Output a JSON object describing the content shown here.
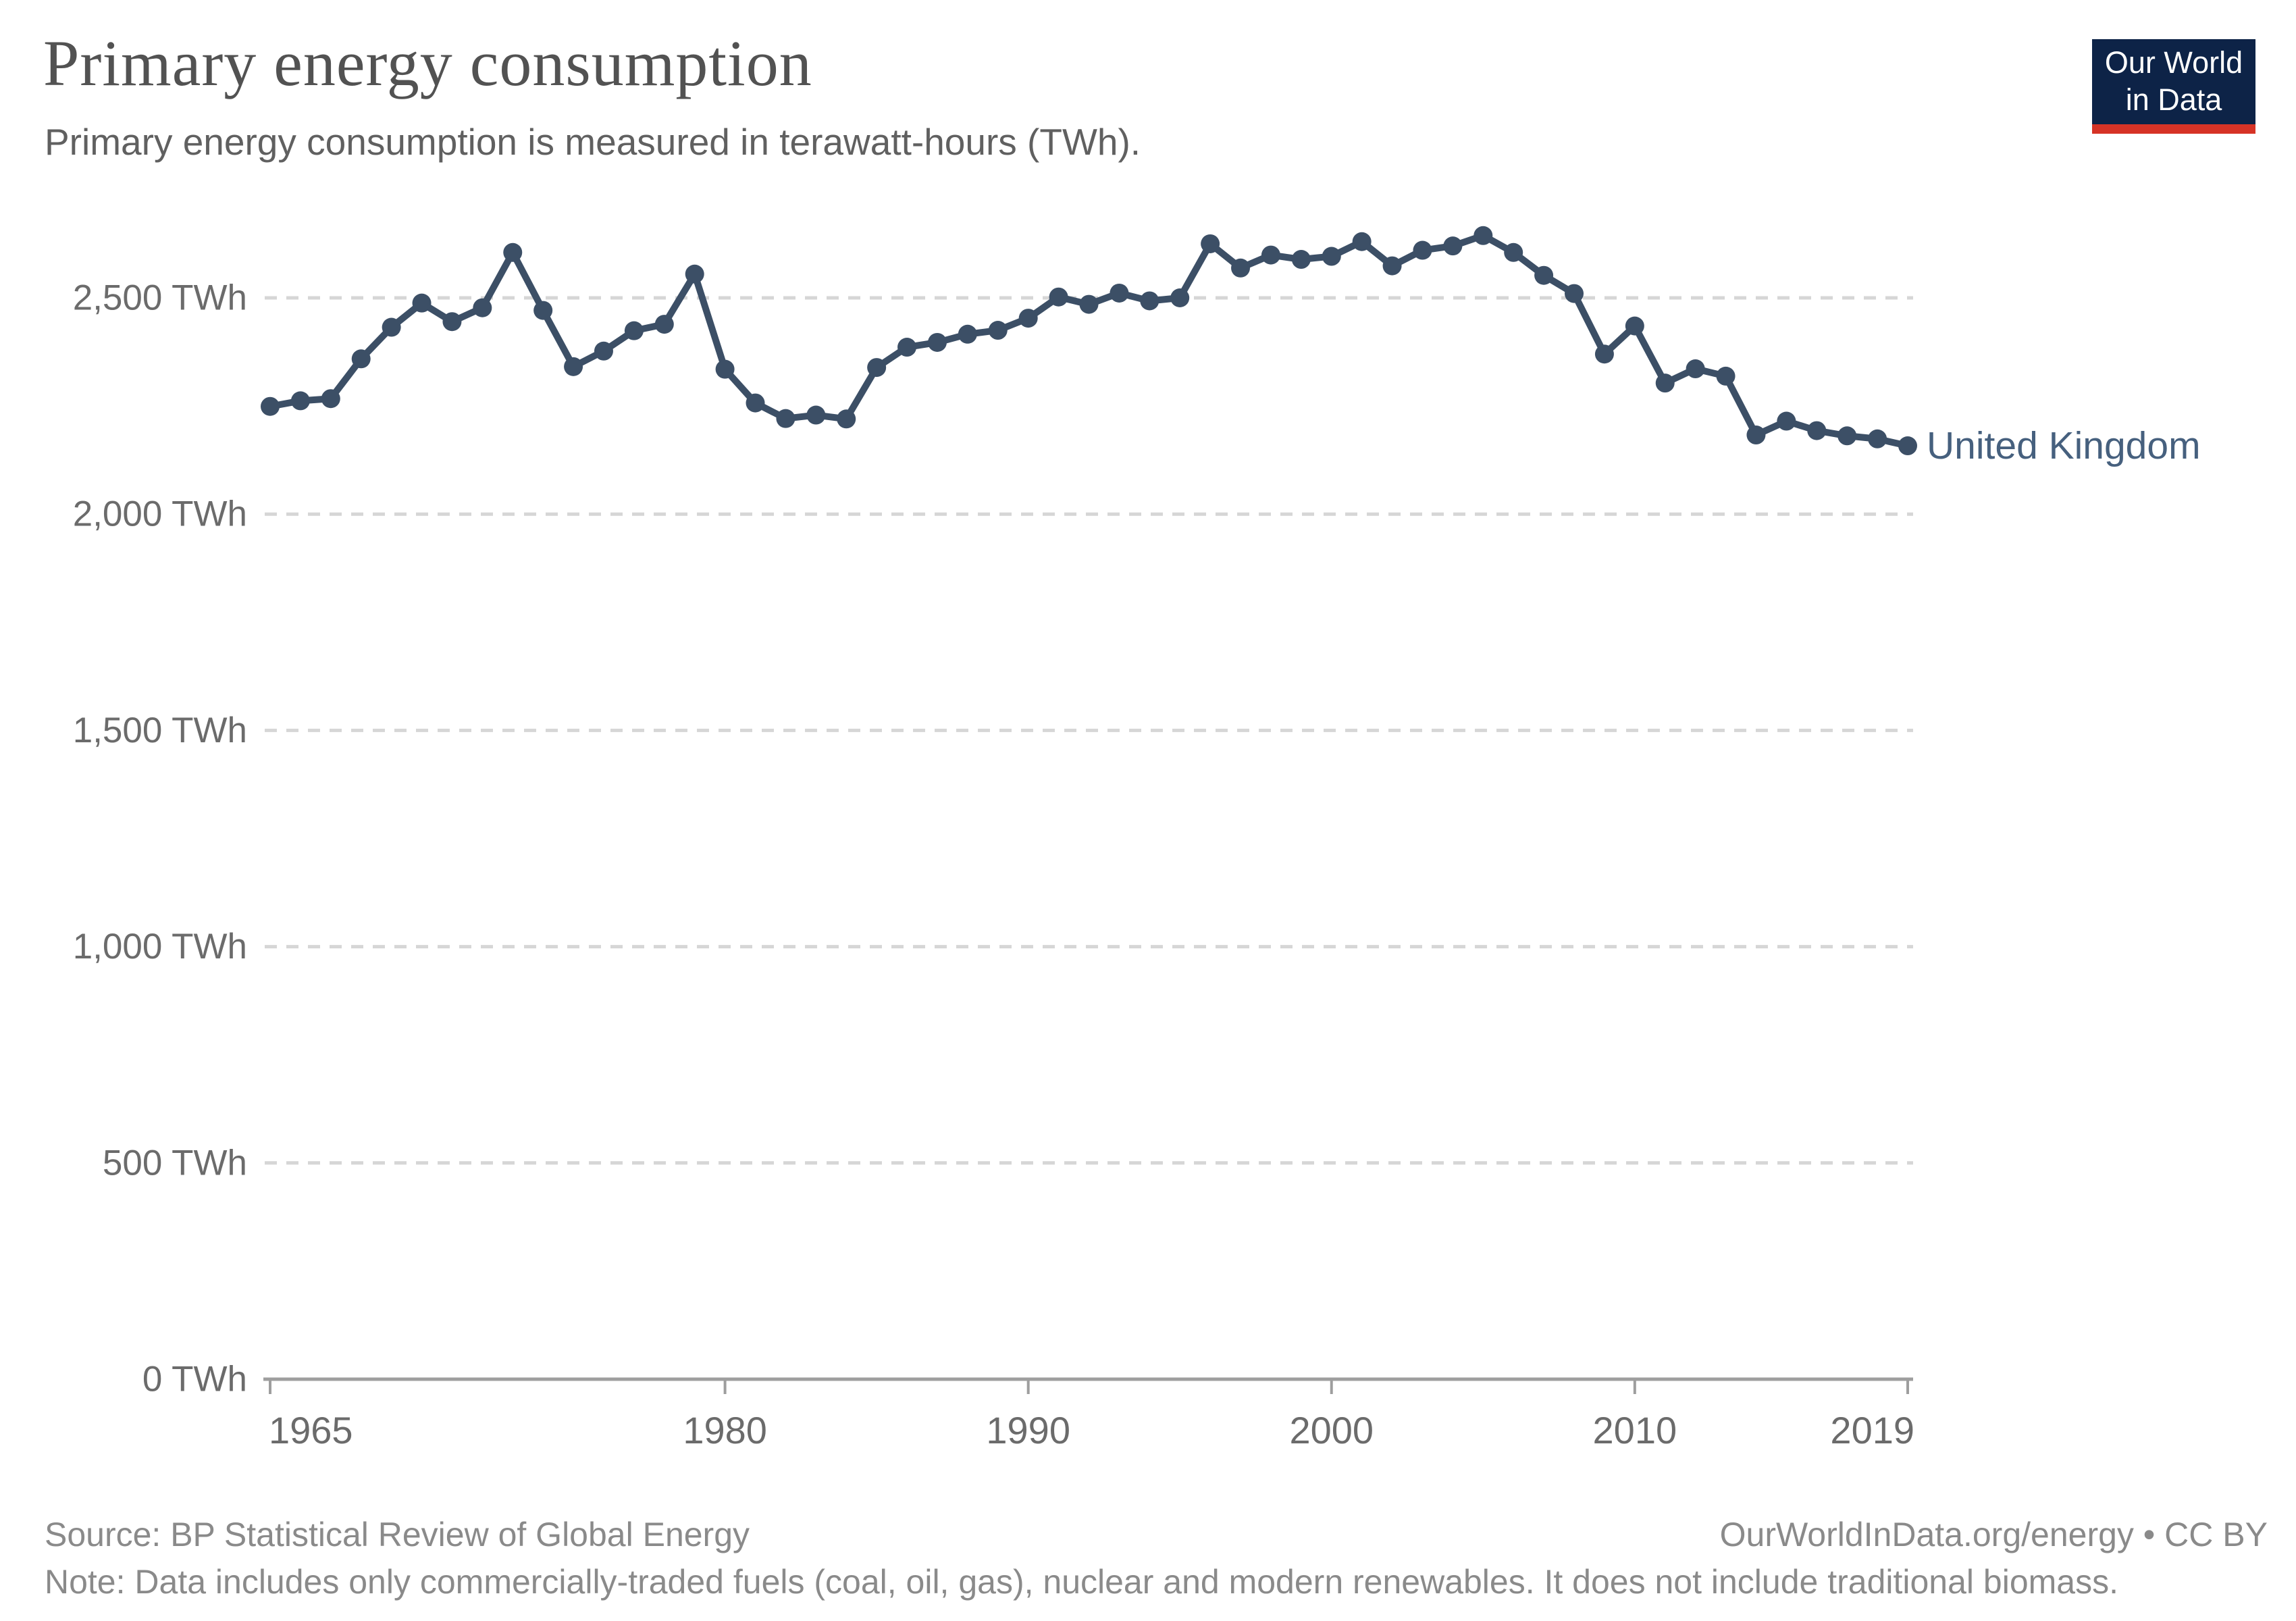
{
  "header": {
    "title": "Primary energy consumption",
    "subtitle": "Primary energy consumption is measured in terawatt-hours (TWh)."
  },
  "logo": {
    "line1": "Our World",
    "line2": "in Data",
    "bg_color": "#0d2347",
    "bar_color": "#d63326"
  },
  "footer": {
    "source": "Source: BP Statistical Review of Global Energy",
    "note": "Note: Data includes only commercially-traded fuels (coal, oil, gas), nuclear and modern renewables. It does not include traditional biomass.",
    "credit": "OurWorldInData.org/energy • CC BY"
  },
  "chart_data": {
    "type": "line",
    "title": "Primary energy consumption",
    "xlabel": "",
    "ylabel": "TWh",
    "ylim": [
      0,
      2700
    ],
    "grid": true,
    "legend_position": "end-of-line",
    "series": [
      {
        "name": "United Kingdom",
        "color": "#3c4f66",
        "label_color": "#46607e",
        "x": [
          1965,
          1966,
          1967,
          1968,
          1969,
          1970,
          1971,
          1972,
          1973,
          1974,
          1975,
          1976,
          1977,
          1978,
          1979,
          1980,
          1981,
          1982,
          1983,
          1984,
          1985,
          1986,
          1987,
          1988,
          1989,
          1990,
          1991,
          1992,
          1993,
          1994,
          1995,
          1996,
          1997,
          1998,
          1999,
          2000,
          2001,
          2002,
          2003,
          2004,
          2005,
          2006,
          2007,
          2008,
          2009,
          2010,
          2011,
          2012,
          2013,
          2014,
          2015,
          2016,
          2017,
          2018,
          2019
        ],
        "values": [
          2249,
          2262,
          2267,
          2359,
          2432,
          2488,
          2445,
          2477,
          2605,
          2471,
          2341,
          2377,
          2424,
          2439,
          2555,
          2335,
          2257,
          2221,
          2229,
          2220,
          2339,
          2386,
          2397,
          2416,
          2425,
          2453,
          2502,
          2485,
          2511,
          2493,
          2500,
          2625,
          2569,
          2599,
          2589,
          2596,
          2630,
          2574,
          2610,
          2620,
          2644,
          2605,
          2552,
          2510,
          2370,
          2435,
          2303,
          2336,
          2319,
          2183,
          2215,
          2193,
          2181,
          2174,
          2158
        ]
      }
    ],
    "y_ticks": [
      {
        "value": 0,
        "label": "0 TWh"
      },
      {
        "value": 500,
        "label": "500 TWh"
      },
      {
        "value": 1000,
        "label": "1,000 TWh"
      },
      {
        "value": 1500,
        "label": "1,500 TWh"
      },
      {
        "value": 2000,
        "label": "2,000 TWh"
      },
      {
        "value": 2500,
        "label": "2,500 TWh"
      }
    ],
    "x_ticks": [
      {
        "value": 1965,
        "label": "1965"
      },
      {
        "value": 1980,
        "label": "1980"
      },
      {
        "value": 1990,
        "label": "1990"
      },
      {
        "value": 2000,
        "label": "2000"
      },
      {
        "value": 2010,
        "label": "2010"
      },
      {
        "value": 2019,
        "label": "2019"
      }
    ],
    "colors": {
      "gridline": "#d6d6d6",
      "axis": "#9e9e9e",
      "tick_label": "#6b6b6b"
    }
  }
}
